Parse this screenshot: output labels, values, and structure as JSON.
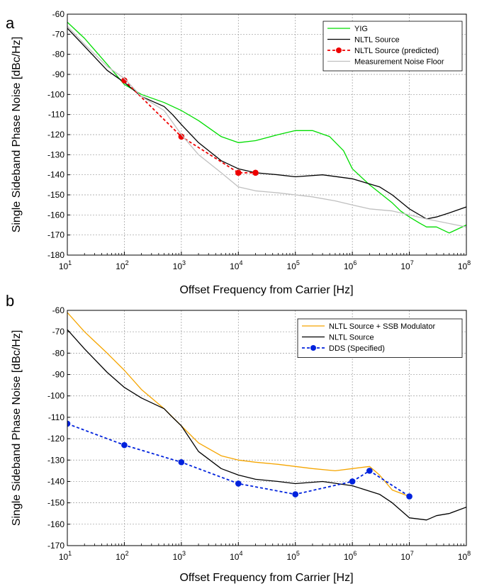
{
  "chart_data": [
    {
      "type": "line",
      "panel_label": "a",
      "xscale": "log",
      "xlim": [
        10,
        100000000
      ],
      "ylim": [
        -180,
        -60
      ],
      "xlabel": "Offset Frequency from Carrier [Hz]",
      "ylabel": "Single Sideband Phase Noise [dBc/Hz]",
      "x_ticks": [
        10,
        100,
        1000,
        10000,
        100000,
        1000000,
        10000000,
        100000000
      ],
      "x_tick_labels": [
        {
          "base": "10",
          "exp": "1"
        },
        {
          "base": "10",
          "exp": "2"
        },
        {
          "base": "10",
          "exp": "3"
        },
        {
          "base": "10",
          "exp": "4"
        },
        {
          "base": "10",
          "exp": "5"
        },
        {
          "base": "10",
          "exp": "6"
        },
        {
          "base": "10",
          "exp": "7"
        },
        {
          "base": "10",
          "exp": "8"
        }
      ],
      "y_ticks": [
        -60,
        -70,
        -80,
        -90,
        -100,
        -110,
        -120,
        -130,
        -140,
        -150,
        -160,
        -170,
        -180
      ],
      "y_tick_labels": [
        "-60",
        "-70",
        "-80",
        "-90",
        "-100",
        "-110",
        "-120",
        "-130",
        "-140",
        "-150",
        "-160",
        "-170",
        "-180"
      ],
      "grid": true,
      "legend_position": "top-right",
      "series": [
        {
          "name": "YIG",
          "color": "#00dd00",
          "style": "solid",
          "x": [
            10,
            20,
            50,
            100,
            200,
            500,
            1000,
            2000,
            5000,
            10000,
            20000,
            50000,
            100000,
            200000,
            400000,
            700000,
            1000000,
            2000000,
            5000000,
            7000000,
            10000000,
            15000000,
            20000000,
            30000000,
            50000000,
            100000000
          ],
          "y": [
            -64,
            -72,
            -85,
            -95,
            -100,
            -104,
            -108,
            -113,
            -121,
            -124,
            -123,
            -120,
            -118,
            -118,
            -121,
            -128,
            -137,
            -145,
            -154,
            -158,
            -161,
            -164,
            -166,
            -166,
            -169,
            -165
          ]
        },
        {
          "name": "NLTL Source",
          "color": "#000000",
          "style": "solid",
          "x": [
            10,
            20,
            50,
            100,
            200,
            500,
            700,
            1000,
            2000,
            5000,
            10000,
            20000,
            50000,
            100000,
            300000,
            1000000,
            3000000,
            5000000,
            10000000,
            20000000,
            30000000,
            50000000,
            100000000
          ],
          "y": [
            -67,
            -76,
            -88,
            -94,
            -101,
            -106,
            -110,
            -115,
            -124,
            -133,
            -137,
            -139,
            -140,
            -141,
            -140,
            -142,
            -146,
            -150,
            -157,
            -162,
            -161,
            -159,
            -156
          ]
        },
        {
          "name": "NLTL Source (predicted)",
          "color": "#ee0000",
          "style": "dashed",
          "markers": true,
          "x": [
            100,
            1000,
            10000,
            20000
          ],
          "y": [
            -93,
            -121,
            -139,
            -139
          ]
        },
        {
          "name": "Measurement Noise Floor",
          "color": "#c0c0c0",
          "style": "solid",
          "x": [
            10,
            20,
            50,
            100,
            200,
            500,
            1000,
            2000,
            5000,
            10000,
            20000,
            50000,
            100000,
            200000,
            500000,
            1000000,
            2000000,
            5000000,
            10000000,
            20000000,
            100000000
          ],
          "y": [
            -66,
            -75,
            -86,
            -92,
            -101,
            -108,
            -120,
            -130,
            -139,
            -146,
            -148,
            -149,
            -150,
            -151,
            -153,
            -155,
            -157,
            -158,
            -160,
            -162,
            -166
          ]
        }
      ]
    },
    {
      "type": "line",
      "panel_label": "b",
      "xscale": "log",
      "xlim": [
        10,
        100000000
      ],
      "ylim": [
        -170,
        -60
      ],
      "xlabel": "Offset Frequency from Carrier [Hz]",
      "ylabel": "Single Sideband Phase Noise [dBc/Hz]",
      "x_ticks": [
        10,
        100,
        1000,
        10000,
        100000,
        1000000,
        10000000,
        100000000
      ],
      "x_tick_labels": [
        {
          "base": "10",
          "exp": "1"
        },
        {
          "base": "10",
          "exp": "2"
        },
        {
          "base": "10",
          "exp": "3"
        },
        {
          "base": "10",
          "exp": "4"
        },
        {
          "base": "10",
          "exp": "5"
        },
        {
          "base": "10",
          "exp": "6"
        },
        {
          "base": "10",
          "exp": "7"
        },
        {
          "base": "10",
          "exp": "8"
        }
      ],
      "y_ticks": [
        -60,
        -70,
        -80,
        -90,
        -100,
        -110,
        -120,
        -130,
        -140,
        -150,
        -160,
        -170
      ],
      "y_tick_labels": [
        "-60",
        "-70",
        "-80",
        "-90",
        "-100",
        "-110",
        "-120",
        "-130",
        "-140",
        "-150",
        "-160",
        "-170"
      ],
      "grid": true,
      "legend_position": "top-right",
      "series": [
        {
          "name": "NLTL Source + SSB Modulator",
          "color": "#f5a500",
          "style": "solid",
          "x": [
            10,
            20,
            50,
            100,
            200,
            500,
            1000,
            2000,
            5000,
            10000,
            20000,
            50000,
            100000,
            200000,
            500000,
            1000000,
            2000000,
            3000000,
            5000000,
            10000000
          ],
          "y": [
            -61,
            -70,
            -80,
            -88,
            -97,
            -106,
            -114,
            -122,
            -128,
            -130,
            -131,
            -132,
            -133,
            -134,
            -135,
            -134,
            -133,
            -137,
            -144,
            -147
          ]
        },
        {
          "name": "NLTL Source",
          "color": "#000000",
          "style": "solid",
          "x": [
            10,
            20,
            50,
            100,
            200,
            500,
            700,
            1000,
            2000,
            5000,
            10000,
            20000,
            50000,
            100000,
            300000,
            1000000,
            3000000,
            5000000,
            10000000,
            20000000,
            30000000,
            50000000,
            100000000
          ],
          "y": [
            -69,
            -78,
            -89,
            -96,
            -101,
            -106,
            -110,
            -114,
            -126,
            -134,
            -137,
            -139,
            -140,
            -141,
            -140,
            -142,
            -146,
            -150,
            -157,
            -158,
            -156,
            -155,
            -152
          ]
        },
        {
          "name": "DDS (Specified)",
          "color": "#0022dd",
          "style": "dashed",
          "markers": true,
          "x": [
            10,
            100,
            1000,
            10000,
            100000,
            1000000,
            2000000,
            10000000
          ],
          "y": [
            -113,
            -123,
            -131,
            -141,
            -146,
            -140,
            -135,
            -147
          ]
        }
      ]
    }
  ]
}
